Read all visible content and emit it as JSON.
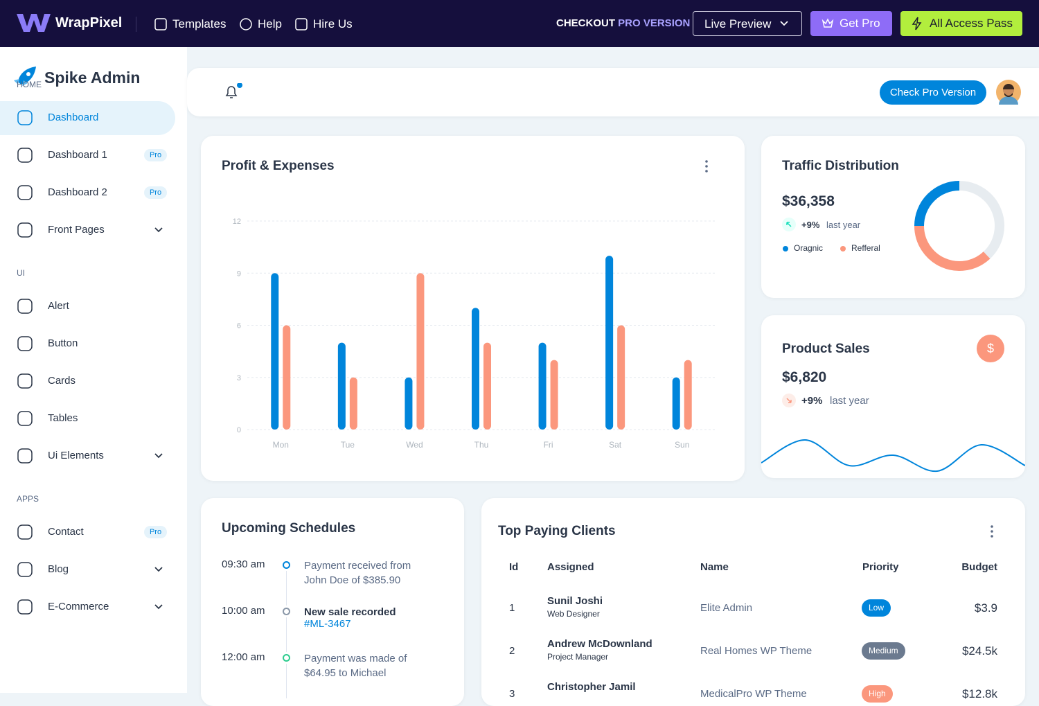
{
  "topbar": {
    "brand": "WrapPixel",
    "nav": [
      "Templates",
      "Help",
      "Hire Us"
    ],
    "checkout": "CHECKOUT",
    "checkout_pro": "PRO VERSION",
    "live_preview": "Live Preview",
    "get_pro": "Get Pro",
    "all_access": "All Access Pass"
  },
  "sidebar": {
    "brand": "Spike Admin",
    "sections": [
      {
        "heading": "HOME",
        "items": [
          {
            "label": "Dashboard",
            "active": true
          },
          {
            "label": "Dashboard 1",
            "badge": "Pro"
          },
          {
            "label": "Dashboard 2",
            "badge": "Pro"
          },
          {
            "label": "Front Pages",
            "expandable": true
          }
        ]
      },
      {
        "heading": "UI",
        "items": [
          {
            "label": "Alert"
          },
          {
            "label": "Button"
          },
          {
            "label": "Cards"
          },
          {
            "label": "Tables"
          },
          {
            "label": "Ui Elements",
            "expandable": true
          }
        ]
      },
      {
        "heading": "APPS",
        "items": [
          {
            "label": "Contact",
            "badge": "Pro"
          },
          {
            "label": "Blog",
            "expandable": true
          },
          {
            "label": "E-Commerce",
            "expandable": true
          }
        ]
      }
    ]
  },
  "header": {
    "button": "Check Pro Version"
  },
  "traffic_card": {
    "amount": "$36,358",
    "change": "+9%",
    "note": "last year"
  },
  "sales_card": {
    "title": "Product Sales",
    "amount": "$6,820",
    "change": "+9%",
    "note": "last year",
    "icon_label": "$"
  },
  "chart_data": [
    {
      "type": "bar",
      "title": "Profit & Expenses",
      "categories": [
        "Mon",
        "Tue",
        "Wed",
        "Thu",
        "Fri",
        "Sat",
        "Sun"
      ],
      "series": [
        {
          "color": "#0085db",
          "values": [
            9,
            5,
            3,
            7,
            5,
            10,
            3
          ]
        },
        {
          "color": "#fb977d",
          "values": [
            6,
            3,
            9,
            5,
            4,
            6,
            4
          ]
        }
      ],
      "ylim": [
        0,
        12
      ],
      "yticks": [
        0,
        3,
        6,
        9,
        12
      ],
      "grid": true
    },
    {
      "type": "donut",
      "title": "Traffic Distribution",
      "categories": [
        "Oragnic",
        "Refferal",
        null
      ],
      "values": [
        25,
        37,
        38
      ],
      "colors": [
        "#0085db",
        "#fb977d",
        "#e7ecf0"
      ]
    },
    {
      "type": "line",
      "values": [
        32,
        65,
        28,
        43,
        20,
        58,
        28
      ],
      "color": "#0085db"
    }
  ],
  "schedules": {
    "title": "Upcoming Schedules",
    "items": [
      {
        "time": "09:30 am",
        "text": "Payment received from John Doe of $385.90",
        "color": "#0085db"
      },
      {
        "time": "10:00 am",
        "text": "New sale recorded",
        "link": "#ML-3467",
        "color": "#8a97a8"
      },
      {
        "time": "12:00 am",
        "text": "Payment was made of $64.95 to Michael",
        "color": "#2ecc8f"
      }
    ]
  },
  "clients": {
    "title": "Top Paying Clients",
    "headers": [
      "Id",
      "Assigned",
      "Name",
      "Priority",
      "Budget"
    ],
    "rows": [
      {
        "id": "1",
        "assigned": "Sunil Joshi",
        "role": "Web Designer",
        "name": "Elite Admin",
        "priority": "Low",
        "priority_color": "#0085db",
        "budget": "$3.9"
      },
      {
        "id": "2",
        "assigned": "Andrew McDownland",
        "role": "Project Manager",
        "name": "Real Homes WP Theme",
        "priority": "Medium",
        "priority_color": "#6b7a8f",
        "budget": "$24.5k"
      },
      {
        "id": "3",
        "assigned": "Christopher Jamil",
        "name": "MedicalPro WP Theme",
        "priority": "High",
        "priority_color": "#fb977d",
        "budget": "$12.8k"
      }
    ]
  }
}
